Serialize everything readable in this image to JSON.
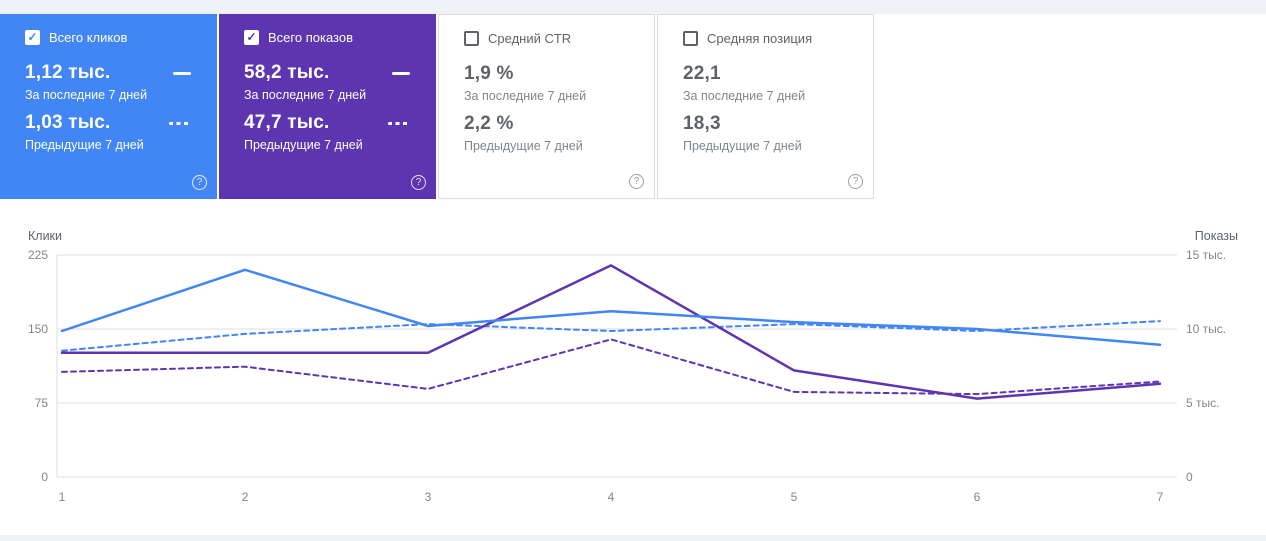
{
  "icons": {
    "check": "✓",
    "help": "?"
  },
  "cards": [
    {
      "label": "Всего кликов",
      "checked": true,
      "accent": "#4285f4",
      "value_current": "1,12 тыс.",
      "caption_current": "За последние 7 дней",
      "value_previous": "1,03 тыс.",
      "caption_previous": "Предыдущие 7 дней"
    },
    {
      "label": "Всего показов",
      "checked": true,
      "accent": "#5e35b1",
      "value_current": "58,2 тыс.",
      "caption_current": "За последние 7 дней",
      "value_previous": "47,7 тыс.",
      "caption_previous": "Предыдущие 7 дней"
    },
    {
      "label": "Средний CTR",
      "checked": false,
      "value_current": "1,9 %",
      "caption_current": "За последние 7 дней",
      "value_previous": "2,2 %",
      "caption_previous": "Предыдущие 7 дней"
    },
    {
      "label": "Средняя позиция",
      "checked": false,
      "value_current": "22,1",
      "caption_current": "За последние 7 дней",
      "value_previous": "18,3",
      "caption_previous": "Предыдущие 7 дней"
    }
  ],
  "chart_data": {
    "type": "line",
    "x": [
      "1",
      "2",
      "3",
      "4",
      "5",
      "6",
      "7"
    ],
    "left_axis": {
      "label": "Клики",
      "ticks": [
        "225",
        "150",
        "75",
        "0"
      ],
      "range": [
        0,
        225
      ]
    },
    "right_axis": {
      "label": "Показы",
      "ticks": [
        "15 тыс.",
        "10 тыс.",
        "5 тыс.",
        "0"
      ],
      "range": [
        0,
        15000
      ]
    },
    "grid": true,
    "series": [
      {
        "name": "Клики — за последние 7 дней",
        "axis": "left",
        "style": "solid",
        "color": "#4285f4",
        "values": [
          148,
          210,
          153,
          168,
          157,
          150,
          134
        ]
      },
      {
        "name": "Клики — предыдущие 7 дней",
        "axis": "left",
        "style": "dashed",
        "color": "#4285f4",
        "values": [
          128,
          145,
          155,
          148,
          155,
          148,
          158
        ]
      },
      {
        "name": "Показы — за последние 7 дней",
        "axis": "right",
        "style": "solid",
        "color": "#5e35b1",
        "values": [
          8400,
          8400,
          8400,
          14300,
          7200,
          5300,
          6300
        ]
      },
      {
        "name": "Показы — предыдущие 7 дней",
        "axis": "right",
        "style": "dashed",
        "color": "#5e35b1",
        "values": [
          7100,
          7450,
          5950,
          9300,
          5750,
          5600,
          6450
        ]
      }
    ]
  }
}
